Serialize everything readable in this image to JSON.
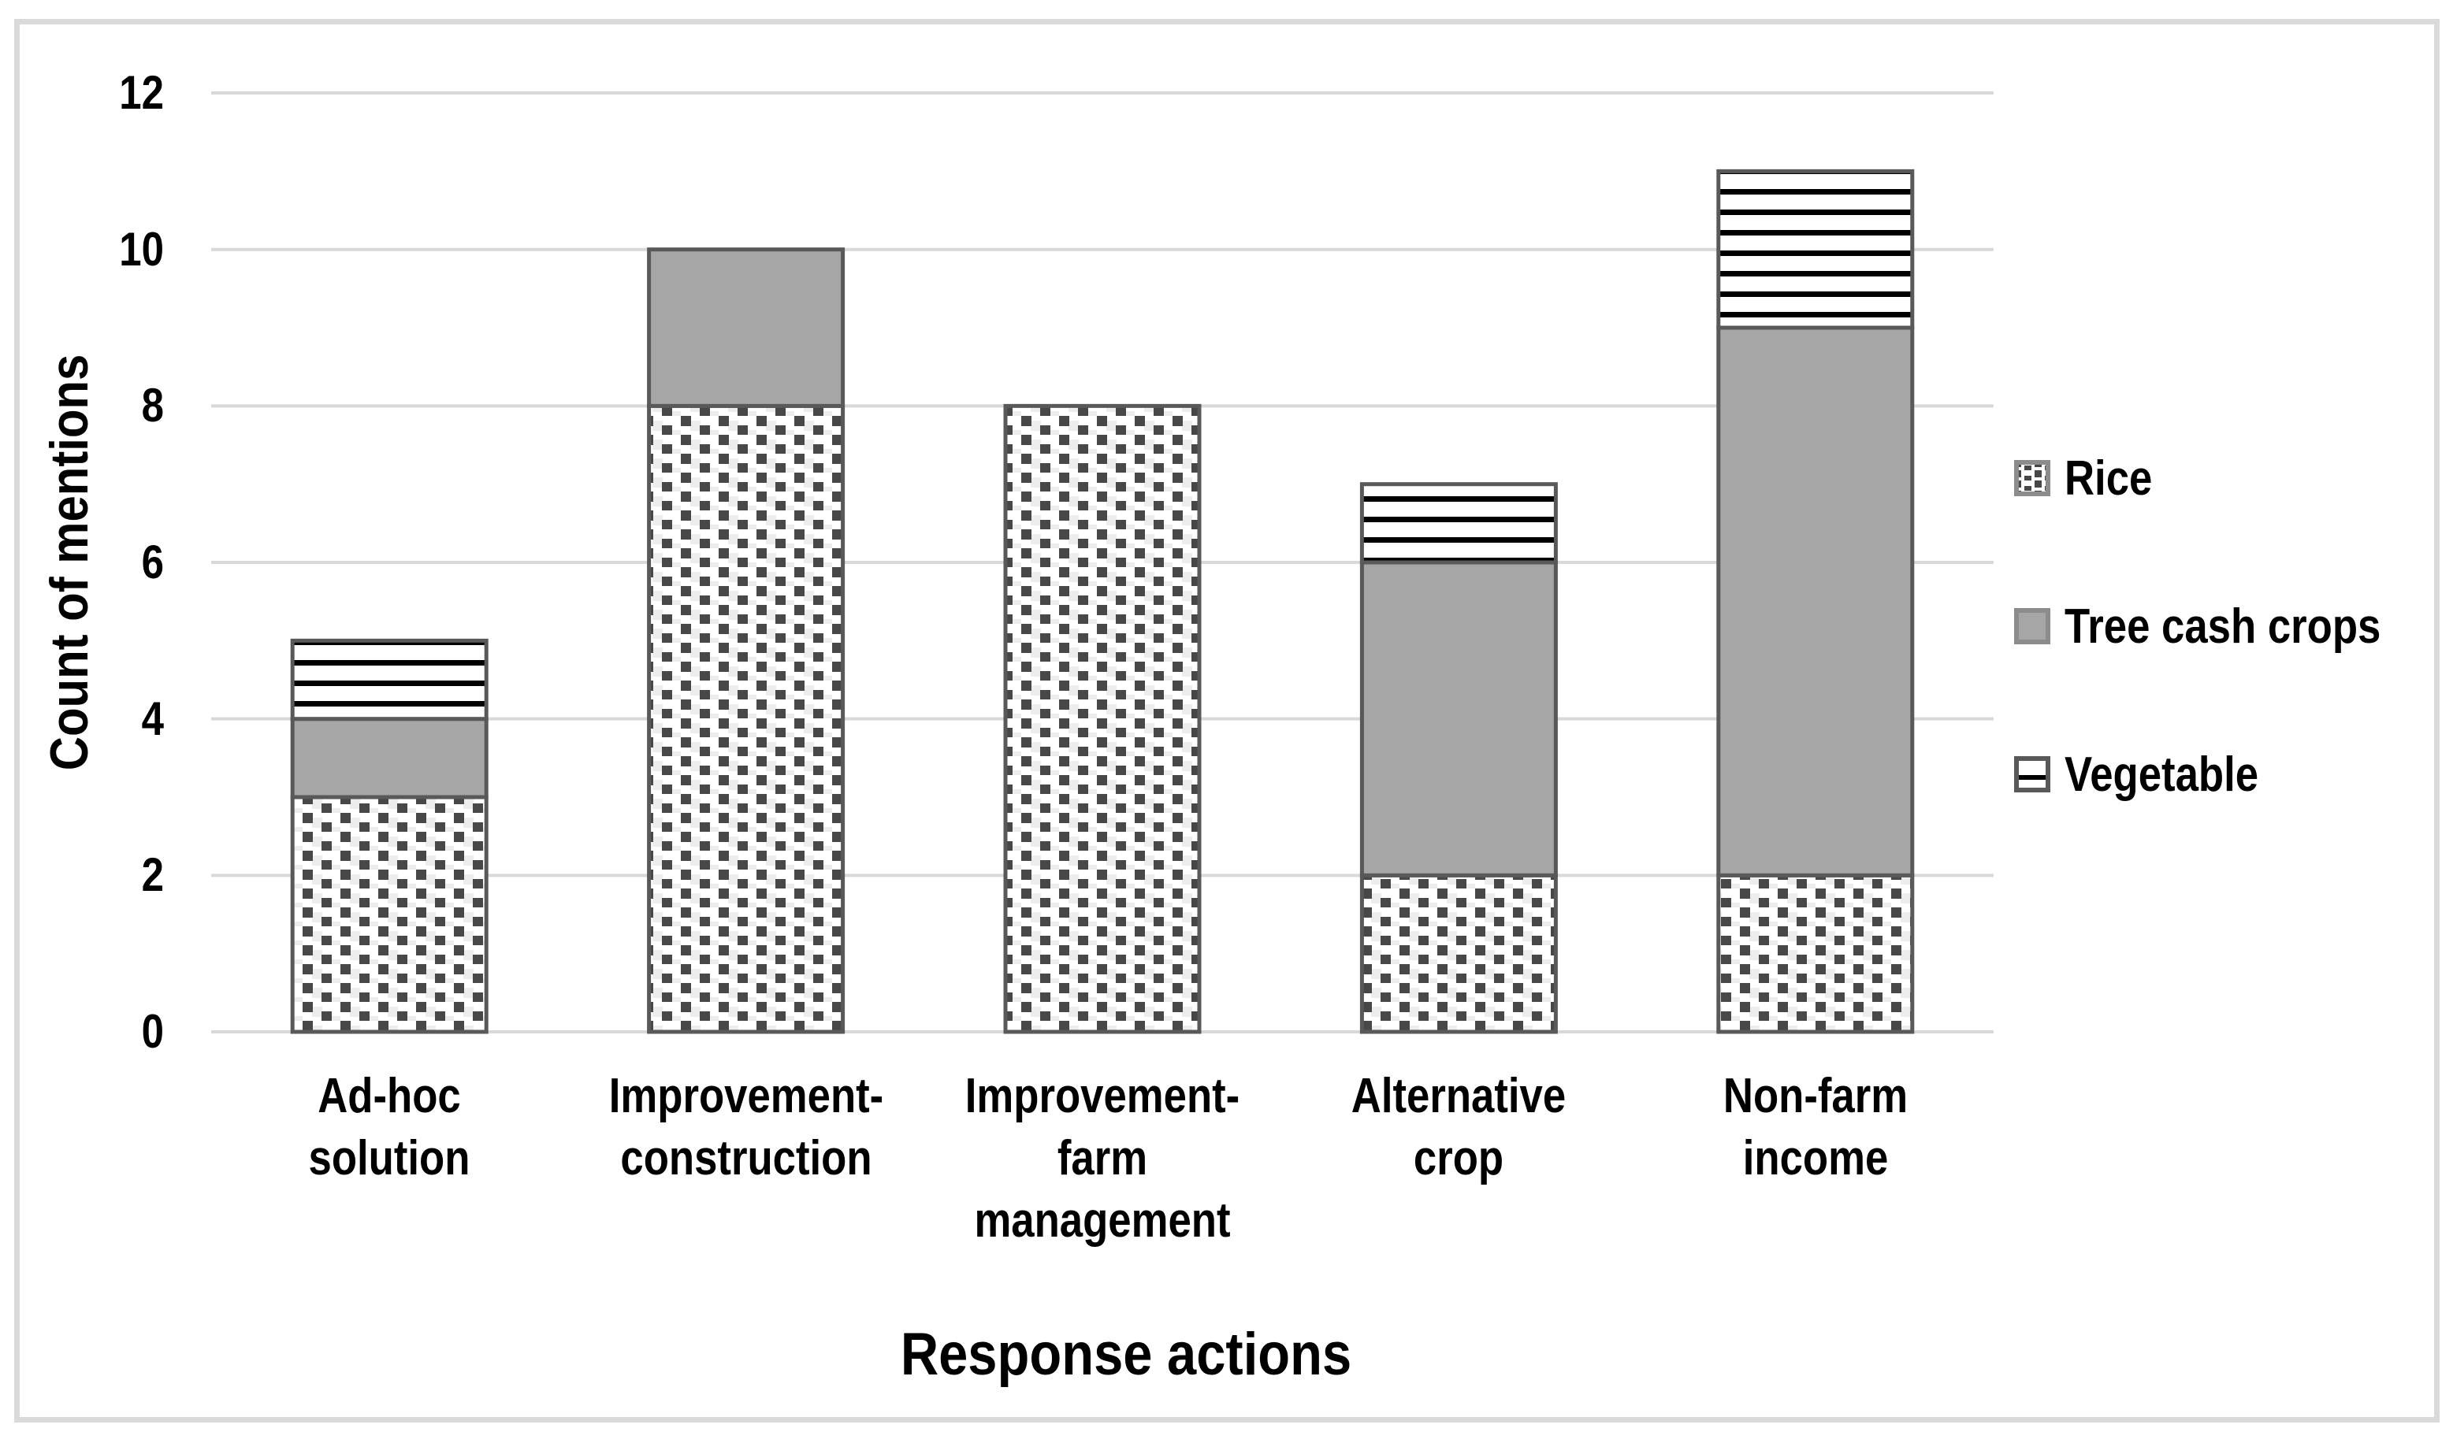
{
  "colors": {
    "bar_border": "#595959",
    "tree_fill": "#a6a6a6",
    "pattern_square_dark": "#474747",
    "pattern_square_light": "#ededed",
    "stripe_black": "#000000",
    "gridline": "#d9d9d9",
    "frame_border": "#dadada",
    "text": "#000000",
    "legend_swatch_border": "#8c8c8c"
  },
  "chart_data": {
    "type": "bar",
    "stacked": true,
    "title": "",
    "xlabel": "Response actions",
    "ylabel": "Count of mentions",
    "categories": [
      "Ad-hoc solution",
      "Improvement-\nconstruction",
      "Improvement-\nfarm\nmanagement",
      "Alternative crop",
      "Non-farm\nincome"
    ],
    "series": [
      {
        "name": "Rice",
        "pattern": "dotted-squares",
        "values": [
          3,
          8,
          8,
          2,
          2
        ]
      },
      {
        "name": "Tree cash crops",
        "pattern": "solid-gray",
        "values": [
          1,
          2,
          0,
          4,
          7
        ]
      },
      {
        "name": "Vegetable",
        "pattern": "horizontal-stripes",
        "values": [
          1,
          0,
          0,
          1,
          2
        ]
      }
    ],
    "totals": [
      5,
      10,
      8,
      7,
      11
    ],
    "ylim": [
      0,
      12
    ],
    "yticks": [
      0,
      2,
      4,
      6,
      8,
      10,
      12
    ],
    "grid": "horizontal-only",
    "legend_position": "right"
  }
}
